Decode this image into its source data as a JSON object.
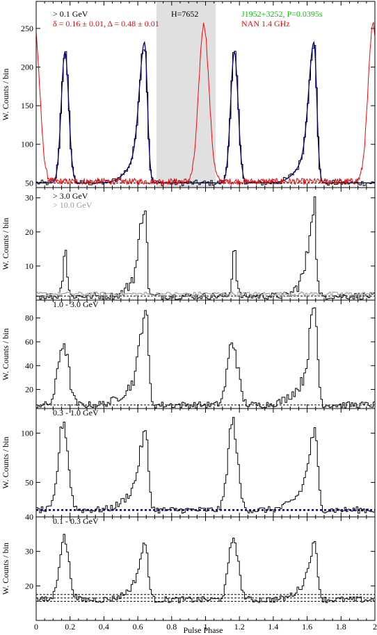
{
  "chart_data": [
    {
      "type": "line",
      "panel": "1",
      "annotation": "> 0.1 GeV",
      "shape_text": "δ = 0.16 ± 0.01, Δ = 0.48 ± 0.01",
      "h_text": "H=7652",
      "source_text": "J1952+3252, P=0.0395s",
      "radio_text": "NAN 1.4 GHz",
      "ylabel": "W. Counts / bin",
      "ylim": [
        44,
        285
      ],
      "yticks": [
        50,
        100,
        150,
        200,
        250
      ],
      "shaded_range": [
        0.71,
        1.06
      ],
      "background_level": 50,
      "peak1": {
        "phase": 0.17,
        "height": 220,
        "width": 0.022
      },
      "peak2": {
        "phase": 0.64,
        "height": 232,
        "width": 0.03,
        "wing_height": 90,
        "wing_width": 0.08
      },
      "radio_peak": {
        "phase": 0.99,
        "height": 255,
        "width": 0.03
      },
      "series": [
        {
          "name": "> 0.1 GeV",
          "color": "#000000"
        },
        {
          "name": "fit",
          "color": "#000080"
        },
        {
          "name": "NAN 1.4 GHz",
          "color": "#ff0000"
        }
      ]
    },
    {
      "type": "line",
      "panel": "2",
      "annotation": "> 3.0 GeV",
      "annotation2": "> 10.0 GeV",
      "ylabel": "W. Counts / bin",
      "ylim": [
        0,
        33
      ],
      "yticks": [
        10,
        20,
        30
      ],
      "background_level": 1.2,
      "peak1": {
        "phase": 0.17,
        "height": 16,
        "width": 0.012
      },
      "peak2": {
        "phase": 0.64,
        "height": 30,
        "width": 0.022,
        "wing_height": 12,
        "wing_width": 0.06
      },
      "series": [
        {
          "name": "> 3.0 GeV",
          "color": "#000000"
        },
        {
          "name": "> 10.0 GeV",
          "color": "#999999"
        }
      ]
    },
    {
      "type": "line",
      "panel": "3",
      "annotation": "1.0 - 3.0 GeV",
      "ylabel": "W. Counts / bin",
      "ylim": [
        4,
        95
      ],
      "yticks": [
        20,
        40,
        60,
        80
      ],
      "background_level": 7,
      "peak1": {
        "phase": 0.16,
        "height": 60,
        "width": 0.03
      },
      "peak2": {
        "phase": 0.645,
        "height": 88,
        "width": 0.03,
        "wing_height": 30,
        "wing_width": 0.1
      },
      "series": [
        {
          "name": "1.0 - 3.0 GeV",
          "color": "#000000"
        }
      ]
    },
    {
      "type": "line",
      "panel": "4",
      "annotation": "0.3 - 1.0 GeV",
      "ylabel": "W. Counts / bin",
      "ylim": [
        15,
        125
      ],
      "yticks": [
        50,
        100
      ],
      "background_level": 22,
      "peak1": {
        "phase": 0.16,
        "height": 112,
        "width": 0.028
      },
      "peak2": {
        "phase": 0.645,
        "height": 100,
        "width": 0.032,
        "wing_height": 50,
        "wing_width": 0.09
      },
      "series": [
        {
          "name": "0.3 - 1.0 GeV",
          "color": "#000000"
        }
      ]
    },
    {
      "type": "line",
      "panel": "5",
      "annotation": "0.1 - 0.3 GeV",
      "ylabel": "W. Counts / bin",
      "ylim": [
        10,
        40
      ],
      "yticks": [
        20,
        30,
        40
      ],
      "background_level": 16,
      "background_band": [
        15.5,
        16.5,
        17.5
      ],
      "peak1": {
        "phase": 0.165,
        "height": 34,
        "width": 0.028
      },
      "peak2": {
        "phase": 0.645,
        "height": 32,
        "width": 0.03,
        "wing_height": 22,
        "wing_width": 0.08
      },
      "xlabel": "Pulse Phase",
      "xticks": [
        "0",
        "0.2",
        "0.4",
        "0.6",
        "0.8",
        "1",
        "1.2",
        "1.4",
        "1.6",
        "1.8",
        "2"
      ],
      "xlim": [
        0,
        2
      ],
      "series": [
        {
          "name": "0.1 - 0.3 GeV",
          "color": "#000000"
        }
      ]
    }
  ]
}
